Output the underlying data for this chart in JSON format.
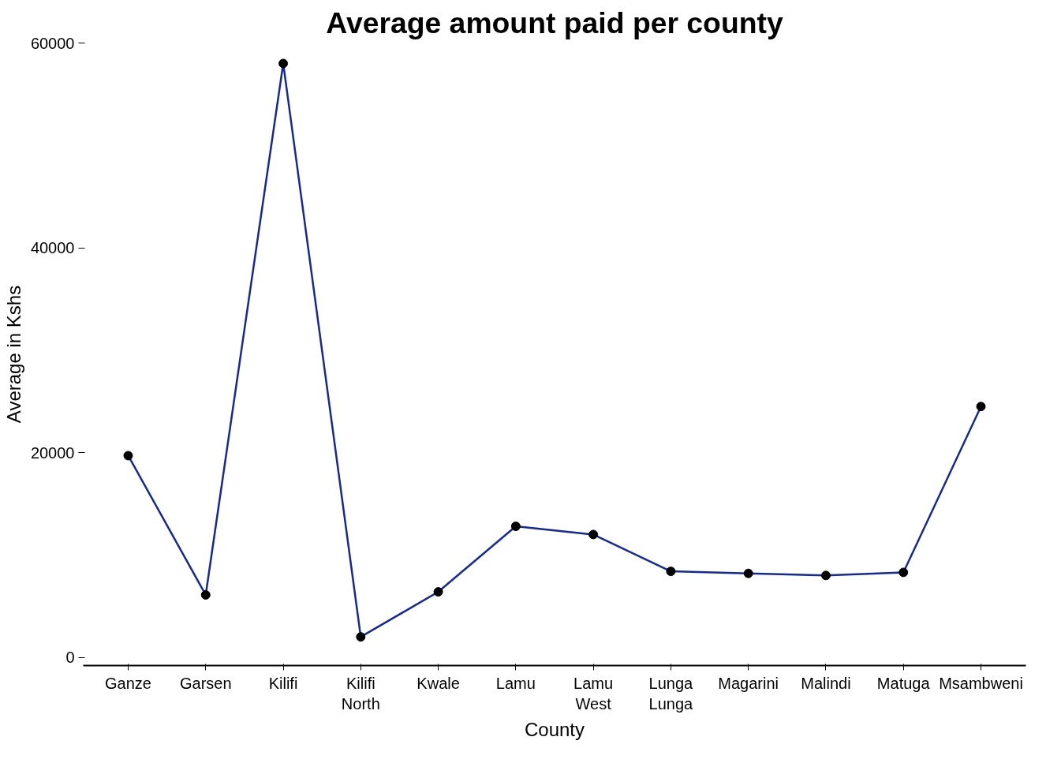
{
  "chart_data": {
    "type": "line",
    "title": "Average amount paid per county",
    "xlabel": "County",
    "ylabel": "Average in Kshs",
    "categories": [
      "Ganze",
      "Garsen",
      "Kilifi",
      "Kilifi North",
      "Kwale",
      "Lamu",
      "Lamu West",
      "Lunga Lunga",
      "Magarini",
      "Malindi",
      "Matuga",
      "Msambweni"
    ],
    "series": [
      {
        "color": "#14299c",
        "values": [
          19700,
          6100,
          58000,
          2000,
          6400,
          12800,
          12000,
          8400,
          8200,
          8000,
          8300,
          24500
        ]
      }
    ],
    "ylim": [
      -800,
      60000
    ],
    "yticks": [
      0,
      20000,
      40000,
      60000
    ],
    "grid": false,
    "marker": "circle",
    "line_style": "solid"
  }
}
